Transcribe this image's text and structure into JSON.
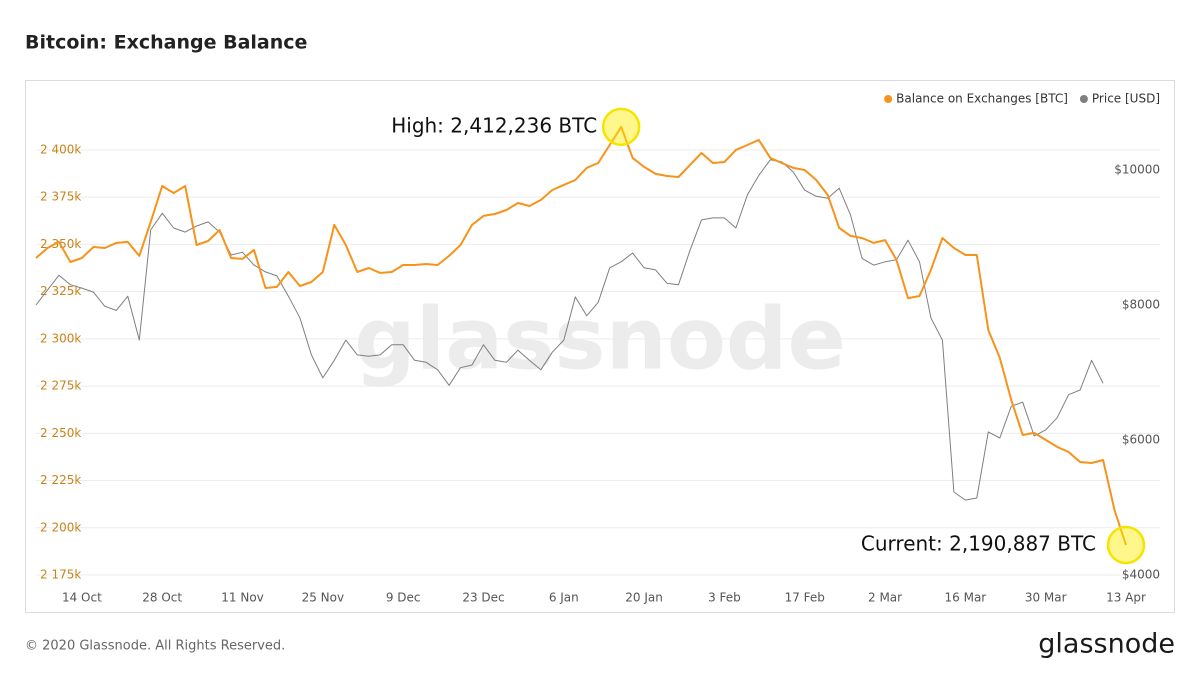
{
  "chart_data": {
    "type": "line",
    "title": "Bitcoin: Exchange Balance",
    "watermark": "glassnode",
    "copyright": "© 2020 Glassnode. All Rights Reserved.",
    "logo": "glassnode",
    "legend": "top-right",
    "grid": true,
    "categories": [
      null,
      null,
      null,
      null,
      "14 Oct",
      null,
      null,
      null,
      null,
      null,
      null,
      "28 Oct",
      null,
      null,
      null,
      null,
      null,
      null,
      "11 Nov",
      null,
      null,
      null,
      null,
      null,
      null,
      "25 Nov",
      null,
      null,
      null,
      null,
      null,
      null,
      "9 Dec",
      null,
      null,
      null,
      null,
      null,
      null,
      "23 Dec",
      null,
      null,
      null,
      null,
      null,
      null,
      "6 Jan",
      null,
      null,
      null,
      null,
      null,
      null,
      "20 Jan",
      null,
      null,
      null,
      null,
      null,
      null,
      "3 Feb",
      null,
      null,
      null,
      null,
      null,
      null,
      "17 Feb",
      null,
      null,
      null,
      null,
      null,
      null,
      "2 Mar",
      null,
      null,
      null,
      null,
      null,
      null,
      "16 Mar",
      null,
      null,
      null,
      null,
      null,
      null,
      "30 Mar",
      null,
      null,
      null,
      null,
      null,
      null,
      "13 Apr"
    ],
    "series": [
      {
        "name": "Balance on Exchanges [BTC]",
        "color": "#f7931a",
        "axis": "y",
        "values": [
          2342800,
          2348100,
          2351300,
          2340700,
          2342800,
          2348600,
          2348100,
          2350800,
          2351300,
          2343900,
          2361900,
          2380900,
          2377200,
          2380900,
          2349700,
          2351800,
          2357600,
          2342800,
          2342300,
          2347100,
          2326900,
          2327500,
          2335400,
          2328000,
          2330100,
          2335400,
          2360300,
          2349700,
          2335400,
          2337500,
          2334900,
          2335400,
          2339100,
          2339100,
          2339600,
          2339100,
          2343900,
          2349700,
          2360300,
          2365100,
          2366100,
          2368200,
          2371900,
          2370300,
          2373500,
          2378800,
          2381500,
          2384100,
          2390500,
          2393100,
          2402600,
          2412236,
          2395800,
          2391000,
          2387300,
          2386200,
          2385700,
          2392100,
          2398400,
          2393100,
          2393600,
          2400000,
          2402600,
          2405300,
          2395800,
          2393100,
          2390500,
          2389400,
          2384100,
          2376200,
          2358700,
          2354500,
          2353400,
          2350800,
          2352300,
          2341800,
          2321600,
          2322700,
          2336500,
          2353400,
          2348100,
          2344400,
          2344400,
          2304700,
          2289900,
          2267600,
          2249100,
          2250200,
          2246500,
          2242800,
          2240100,
          2234800,
          2234300,
          2235900,
          2209400,
          2190887
        ]
      },
      {
        "name": "Price [USD]",
        "color": "#7f7f7f",
        "axis": "y2",
        "values": [
          8000,
          8220,
          8440,
          8300,
          8250,
          8190,
          7980,
          7920,
          8130,
          7480,
          9110,
          9360,
          9140,
          9080,
          9170,
          9230,
          9080,
          8740,
          8780,
          8590,
          8490,
          8430,
          8130,
          7810,
          7260,
          6920,
          7180,
          7480,
          7260,
          7240,
          7260,
          7410,
          7410,
          7180,
          7150,
          7040,
          6810,
          7070,
          7110,
          7410,
          7180,
          7150,
          7330,
          7180,
          7040,
          7300,
          7480,
          8120,
          7840,
          8040,
          8550,
          8640,
          8770,
          8550,
          8520,
          8320,
          8300,
          8810,
          9260,
          9290,
          9290,
          9140,
          9630,
          9920,
          10150,
          10120,
          9970,
          9700,
          9610,
          9580,
          9730,
          9330,
          8690,
          8590,
          8640,
          8670,
          8960,
          8640,
          7810,
          7480,
          5230,
          5110,
          5140,
          6120,
          6030,
          6500,
          6560,
          6060,
          6150,
          6330,
          6670,
          6740,
          7180,
          6840,
          null,
          null
        ]
      }
    ],
    "ylim": [
      2171300,
      2422200
    ],
    "yticks": [
      {
        "value": 2175000,
        "label": "2 175k"
      },
      {
        "value": 2200000,
        "label": "2 200k"
      },
      {
        "value": 2225000,
        "label": "2 225k"
      },
      {
        "value": 2250000,
        "label": "2 250k"
      },
      {
        "value": 2275000,
        "label": "2 275k"
      },
      {
        "value": 2300000,
        "label": "2 300k"
      },
      {
        "value": 2325000,
        "label": "2 325k"
      },
      {
        "value": 2350000,
        "label": "2 350k"
      },
      {
        "value": 2375000,
        "label": "2 375k"
      },
      {
        "value": 2400000,
        "label": "2 400k"
      }
    ],
    "y2lim": [
      3896,
      10918
    ],
    "y2ticks": [
      {
        "value": 4000,
        "label": "$4000"
      },
      {
        "value": 6000,
        "label": "$6000"
      },
      {
        "value": 8000,
        "label": "$8000"
      },
      {
        "value": 10000,
        "label": "$10000"
      }
    ],
    "annotations": [
      {
        "text": "High: 2,412,236 BTC"
      },
      {
        "text": "Current: 2,190,887 BTC"
      }
    ]
  }
}
